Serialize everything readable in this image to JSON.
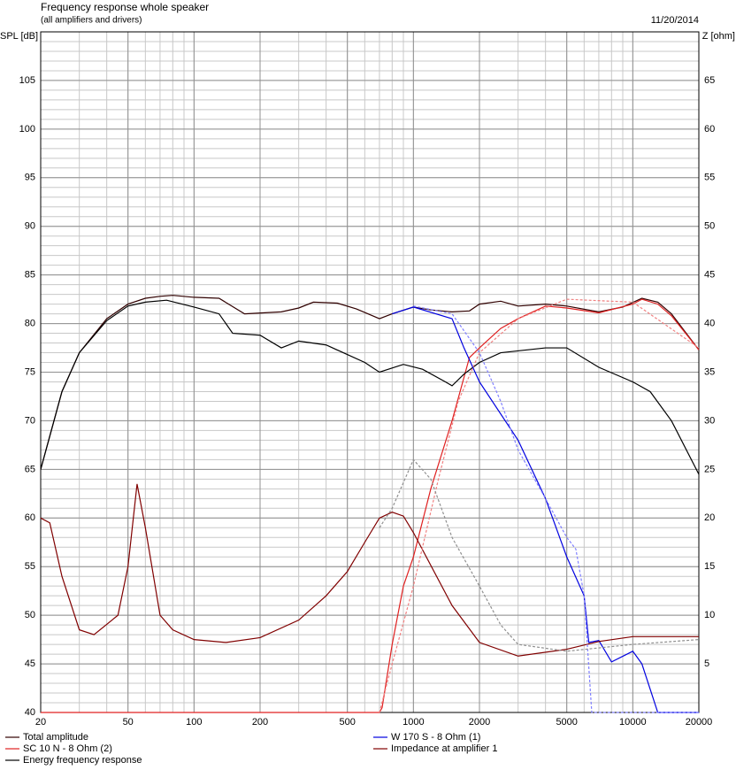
{
  "chart_data": {
    "type": "line",
    "title": "Frequency response whole speaker",
    "subtitle": "(all amplifiers and drivers)",
    "date": "11/20/2014",
    "y_label": "SPL [dB]",
    "y2_label": "Z [ohm]",
    "xscale": "log",
    "grid": true,
    "xlim": [
      20,
      20000
    ],
    "xticks": [
      20,
      50,
      100,
      200,
      500,
      1000,
      2000,
      5000,
      10000,
      20000
    ],
    "ylim": [
      40,
      110
    ],
    "yticks": [
      40,
      45,
      50,
      55,
      60,
      65,
      70,
      75,
      80,
      85,
      90,
      95,
      100,
      105
    ],
    "y2lim": [
      0,
      70
    ],
    "y2ticks": [
      5,
      10,
      15,
      20,
      25,
      30,
      35,
      40,
      45,
      50,
      55,
      60,
      65
    ],
    "series": [
      {
        "name": "Total amplitude",
        "color": "#300000",
        "x": [
          20,
          25,
          30,
          40,
          50,
          60,
          70,
          80,
          100,
          130,
          170,
          250,
          300,
          350,
          450,
          550,
          700,
          800,
          1000,
          1200,
          1500,
          1800,
          2000,
          2500,
          3000,
          4000,
          5000,
          7000,
          9000,
          11000,
          13000,
          15000,
          20000
        ],
        "values": [
          65,
          73,
          77,
          80.5,
          82,
          82.6,
          82.8,
          82.9,
          82.7,
          82.6,
          81,
          81.2,
          81.6,
          82.2,
          82.1,
          81.5,
          80.5,
          81,
          81.7,
          81.4,
          81.2,
          81.3,
          82,
          82.3,
          81.8,
          82,
          81.8,
          81.2,
          81.7,
          82.6,
          82.2,
          81,
          77.3
        ]
      },
      {
        "name": "SC 10 N - 8 Ohm (2)",
        "color": "#e02020",
        "x": [
          20,
          700,
          720,
          800,
          900,
          1000,
          1200,
          1500,
          1800,
          2000,
          2500,
          3000,
          4000,
          5000,
          7000,
          10000,
          11000,
          13000,
          15000,
          20000
        ],
        "values": [
          40,
          40,
          40.5,
          47,
          53,
          56,
          63,
          70,
          76.5,
          77.5,
          79.5,
          80.5,
          81.8,
          81.6,
          81.1,
          82,
          82.5,
          82,
          80.8,
          77.3
        ]
      },
      {
        "name": "Energy frequency response",
        "color": "#000000",
        "x": [
          20,
          25,
          30,
          40,
          50,
          60,
          75,
          100,
          130,
          150,
          200,
          250,
          300,
          400,
          600,
          700,
          900,
          1100,
          1400,
          1500,
          1700,
          2000,
          2500,
          4000,
          5000,
          7000,
          10000,
          12000,
          15000,
          20000
        ],
        "values": [
          65,
          73,
          77,
          80.3,
          81.8,
          82.2,
          82.4,
          81.7,
          81,
          79,
          78.8,
          77.5,
          78.2,
          77.8,
          76,
          75,
          75.8,
          75.3,
          74,
          73.6,
          74.8,
          76,
          77,
          77.5,
          77.5,
          75.5,
          74,
          73,
          70,
          64.5
        ]
      },
      {
        "name": "W 170 S - 8 Ohm (1)",
        "color": "#0000e0",
        "x": [
          800,
          1000,
          1500,
          1700,
          2000,
          3000,
          4000,
          5000,
          6000,
          6300,
          7000,
          8000,
          10000,
          11000,
          13000,
          20000
        ],
        "values": [
          81,
          81.7,
          80.5,
          77.5,
          74,
          68,
          62,
          56,
          52,
          47.2,
          47.4,
          45.2,
          46.3,
          45,
          40,
          40
        ]
      },
      {
        "name": "Impedance at amplifier 1",
        "color": "#800000",
        "axis": "y2",
        "x": [
          20,
          22,
          25,
          30,
          35,
          45,
          50,
          55,
          60,
          70,
          80,
          100,
          140,
          200,
          300,
          400,
          500,
          600,
          700,
          800,
          900,
          1000,
          1500,
          2000,
          3000,
          5000,
          7000,
          10000,
          20000
        ],
        "values": [
          20,
          19.5,
          14,
          8.5,
          8,
          10,
          15,
          23.5,
          19,
          10,
          8.5,
          7.5,
          7.2,
          7.7,
          9.5,
          12,
          14.5,
          17.5,
          20,
          20.6,
          20.2,
          18.5,
          11,
          7.2,
          5.8,
          6.5,
          7.3,
          7.8,
          7.8
        ]
      },
      {
        "color": "#8080ff",
        "dash": true,
        "x": [
          1000,
          1500,
          2000,
          2500,
          3000,
          4000,
          5000,
          5500,
          6000,
          6500,
          20000
        ],
        "values": [
          81.8,
          81,
          77,
          72,
          67,
          62,
          58,
          56.8,
          52,
          40,
          40
        ]
      },
      {
        "color": "#f08080",
        "dash": true,
        "x": [
          700,
          800,
          1000,
          1300,
          1600,
          2000,
          3000,
          5000,
          10000,
          20000
        ],
        "values": [
          40,
          45,
          53,
          64,
          72,
          77,
          80.5,
          82.5,
          82.2,
          77.5
        ]
      },
      {
        "color": "#909090",
        "dash": true,
        "x": [
          700,
          800,
          1000,
          1200,
          1500,
          2000,
          2500,
          3000,
          5000,
          10000,
          20000
        ],
        "values": [
          59,
          61,
          66,
          64,
          58,
          53,
          49,
          47,
          46.3,
          47,
          47.5
        ]
      }
    ]
  }
}
